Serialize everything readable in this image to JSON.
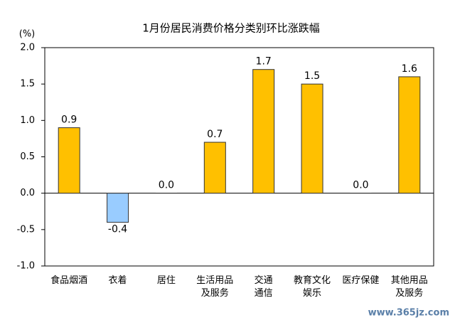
{
  "chart_data": {
    "type": "bar",
    "title": "1月份居民消费价格分类别环比涨跌幅",
    "y_unit": "(%)",
    "categories": [
      "食品烟酒",
      "衣着",
      "居住",
      "生活用品\n及服务",
      "交通\n通信",
      "教育文化\n娱乐",
      "医疗保健",
      "其他用品\n及服务"
    ],
    "values": [
      0.9,
      -0.4,
      0.0,
      0.7,
      1.7,
      1.5,
      0.0,
      1.6
    ],
    "value_labels": [
      "0.9",
      "-0.4",
      "0.0",
      "0.7",
      "1.7",
      "1.5",
      "0.0",
      "1.6"
    ],
    "color": "#ffc000",
    "negative_color": "#99ccff",
    "ylim": [
      -1.0,
      2.0
    ],
    "yticks": [
      {
        "value": -1.0,
        "label": "-1.0"
      },
      {
        "value": -0.5,
        "label": "-0.5"
      },
      {
        "value": 0.0,
        "label": "0.0"
      },
      {
        "value": 0.5,
        "label": "0.5"
      },
      {
        "value": 1.0,
        "label": "1.0"
      },
      {
        "value": 1.5,
        "label": "1.5"
      },
      {
        "value": 2.0,
        "label": "2.0"
      }
    ],
    "grid": false,
    "watermark": "www.365jz.com"
  }
}
